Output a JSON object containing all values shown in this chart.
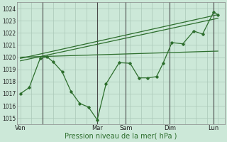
{
  "title": "",
  "xlabel": "Pression niveau de la mer( hPa )",
  "bg_color": "#cce8d8",
  "line_color": "#2d6e2d",
  "grid_color": "#aac8b8",
  "ylim": [
    1014.5,
    1024.5
  ],
  "yticks": [
    1015,
    1016,
    1017,
    1018,
    1019,
    1020,
    1021,
    1022,
    1023,
    1024
  ],
  "xtick_labels": [
    "Ven",
    "",
    "Mar",
    "Sam",
    "",
    "Dim",
    "",
    "Lun"
  ],
  "xtick_positions": [
    0,
    2,
    4,
    5,
    6,
    7,
    8,
    9
  ],
  "vlines_x": [
    1.0,
    3.5,
    4.8,
    6.8,
    8.8
  ],
  "trend1_x": [
    0,
    9.0
  ],
  "trend1_y": [
    1019.9,
    1023.5
  ],
  "trend2_x": [
    0,
    9.0
  ],
  "trend2_y": [
    1019.7,
    1023.2
  ],
  "trend3_x": [
    0,
    9.0
  ],
  "trend3_y": [
    1020.0,
    1020.5
  ],
  "measured_x": [
    0,
    0.4,
    0.9,
    1.2,
    1.5,
    1.9,
    2.3,
    2.7,
    3.1,
    3.5,
    3.9,
    4.5,
    5.0,
    5.4,
    5.8,
    6.2,
    6.5,
    6.9,
    7.4,
    7.9,
    8.3,
    8.8,
    9.0
  ],
  "measured_y": [
    1017.0,
    1017.5,
    1019.9,
    1020.05,
    1019.6,
    1018.8,
    1017.2,
    1016.2,
    1015.9,
    1014.85,
    1017.8,
    1019.55,
    1019.5,
    1018.3,
    1018.3,
    1018.4,
    1019.5,
    1021.2,
    1021.1,
    1022.15,
    1021.9,
    1023.7,
    1023.5
  ]
}
